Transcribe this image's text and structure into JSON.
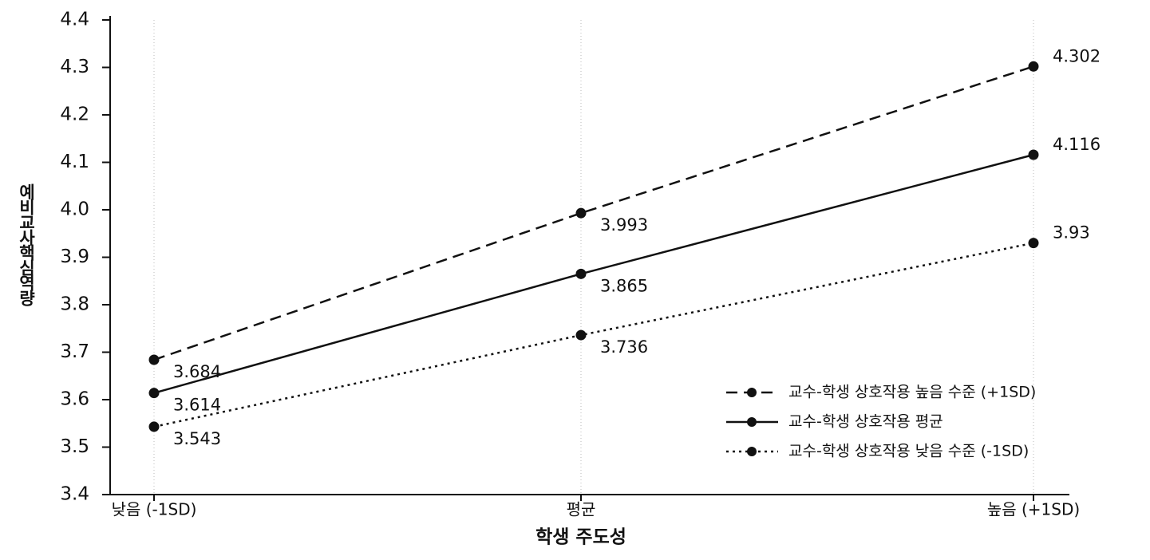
{
  "chart_data": {
    "type": "line",
    "x_label": "학생 주도성",
    "y_label": "예비교사핵심역량",
    "categories": [
      "낮음 (-1SD)",
      "평균",
      "높음 (+1SD)"
    ],
    "series": [
      {
        "name": "교수-학생 상호작용 높음 수준 (+1SD)",
        "color": "#111111",
        "dash": "dashed",
        "values": [
          3.684,
          3.993,
          4.302
        ]
      },
      {
        "name": "교수-학생 상호작용 평균",
        "color": "#111111",
        "dash": "solid",
        "values": [
          3.614,
          3.865,
          4.116
        ]
      },
      {
        "name": "교수-학생 상호작용 낮음 수준 (-1SD)",
        "color": "#111111",
        "dash": "dotted",
        "values": [
          3.543,
          3.736,
          3.93
        ]
      }
    ],
    "ylim": [
      3.4,
      4.4
    ],
    "yticks": [
      3.4,
      3.5,
      3.6,
      3.7,
      3.8,
      3.9,
      {
        "value": 4.0,
        "label": "4.0"
      },
      4.1,
      4.2,
      4.3,
      4.4
    ],
    "grid": "x",
    "legend": "lower right"
  }
}
